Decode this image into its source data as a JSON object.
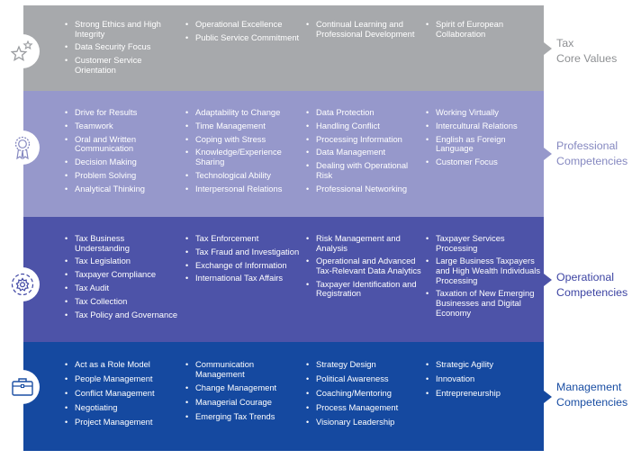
{
  "colors": {
    "core": "#a7a9ac",
    "professional": "#9698cb",
    "operational": "#4d53a8",
    "management": "#1549a0",
    "label_core": "#8e9093",
    "label_professional": "#8588c0",
    "label_operational": "#3d44a3",
    "label_management": "#1a4ea3"
  },
  "rows": [
    {
      "key": "core",
      "icon": "stars-icon",
      "label_lines": [
        "Tax",
        "Core Values"
      ],
      "columns": [
        [
          "Strong Ethics and High Integrity",
          "Data Security Focus",
          "Customer Service Orientation"
        ],
        [
          "Operational Excellence",
          "Public Service Commitment"
        ],
        [
          "Continual Learning and Professional Development"
        ],
        [
          "Spirit of European Collaboration"
        ]
      ]
    },
    {
      "key": "professional",
      "icon": "award-ribbon-icon",
      "label_lines": [
        "Professional",
        "Competencies"
      ],
      "columns": [
        [
          "Drive for Results",
          "Teamwork",
          "Oral and Written Communication",
          "Decision Making",
          "Problem Solving",
          "Analytical Thinking"
        ],
        [
          "Adaptability to Change",
          "Time Management",
          "Coping with Stress",
          "Knowledge/Experience Sharing",
          "Technological Ability",
          "Interpersonal Relations"
        ],
        [
          "Data Protection",
          "Handling Conflict",
          "Processing Information",
          "Data Management",
          "Dealing with Operational Risk",
          "Professional Networking"
        ],
        [
          "Working Virtually",
          "Intercultural Relations",
          "English as Foreign Language",
          "Customer Focus"
        ]
      ]
    },
    {
      "key": "operational",
      "icon": "gear-icon",
      "label_lines": [
        "Operational",
        "Competencies"
      ],
      "columns": [
        [
          "Tax Business Understanding",
          "Tax Legislation",
          "Taxpayer Compliance",
          "Tax Audit",
          "Tax Collection",
          "Tax Policy and Governance"
        ],
        [
          "Tax Enforcement",
          "Tax Fraud and Investigation",
          "Exchange of Information",
          "International Tax Affairs"
        ],
        [
          "Risk Management and Analysis",
          "Operational and Advanced Tax-Relevant Data Analytics",
          "Taxpayer Identification and Registration"
        ],
        [
          "Taxpayer Services Processing",
          "Large Business Taxpayers and High Wealth Individuals Processing",
          "Taxation of New Emerging Businesses and Digital Economy"
        ]
      ]
    },
    {
      "key": "management",
      "icon": "briefcase-icon",
      "label_lines": [
        "Management",
        "Competencies"
      ],
      "columns": [
        [
          "Act as a Role Model",
          "People Management",
          "Conflict Management",
          "Negotiating",
          "Project Management"
        ],
        [
          "Communication Management",
          "Change Management",
          "Managerial Courage",
          "Emerging Tax Trends"
        ],
        [
          "Strategy Design",
          "Political Awareness",
          "Coaching/Mentoring",
          "Process Management",
          "Visionary Leadership"
        ],
        [
          "Strategic Agility",
          "Innovation",
          "Entrepreneurship"
        ]
      ]
    }
  ]
}
